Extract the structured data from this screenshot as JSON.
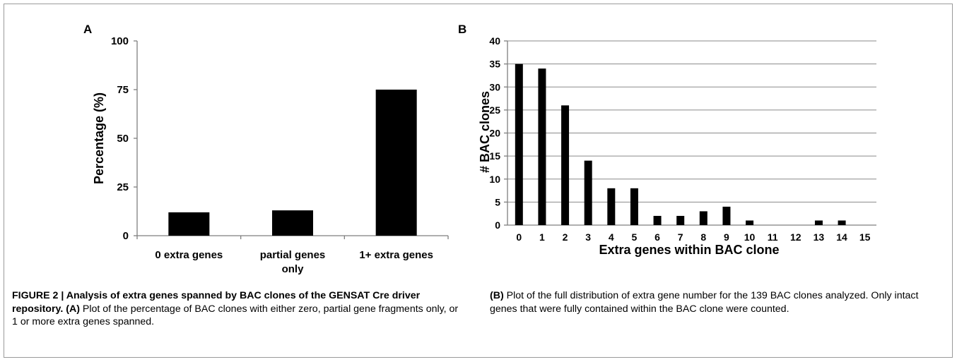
{
  "figure": {
    "caption_title": "FIGURE 2 | Analysis of extra genes spanned by BAC clones of the GENSAT Cre driver repository.",
    "caption_part_a_label": "(A)",
    "caption_part_a_text": "Plot of the percentage of BAC clones with either zero, partial gene fragments only, or 1 or more extra genes spanned.",
    "caption_part_b_label": "(B)",
    "caption_part_b_text": "Plot of the full distribution of extra gene number for the 139 BAC clones analyzed. Only intact genes that were fully contained within the BAC clone were counted."
  },
  "chart_data": [
    {
      "panel_label": "A",
      "type": "bar",
      "title": "",
      "ylabel": "Percentage (%)",
      "xlabel": "",
      "categories": [
        [
          "0 extra genes"
        ],
        [
          "partial genes",
          "only"
        ],
        [
          "1+ extra genes"
        ]
      ],
      "values": [
        12,
        13,
        75
      ],
      "ylim": [
        0,
        100
      ],
      "yticks": [
        0,
        25,
        50,
        75,
        100
      ],
      "grid": false,
      "bar_color": "#000000"
    },
    {
      "panel_label": "B",
      "type": "bar",
      "title": "",
      "ylabel": "# BAC clones",
      "xlabel": "Extra genes within BAC clone",
      "categories": [
        "0",
        "1",
        "2",
        "3",
        "4",
        "5",
        "6",
        "7",
        "8",
        "9",
        "10",
        "11",
        "12",
        "13",
        "14",
        "15"
      ],
      "values": [
        35,
        34,
        26,
        14,
        8,
        8,
        2,
        2,
        3,
        4,
        1,
        0,
        0,
        1,
        1,
        0
      ],
      "ylim": [
        0,
        40
      ],
      "yticks": [
        0,
        5,
        10,
        15,
        20,
        25,
        30,
        35,
        40
      ],
      "grid": true,
      "bar_color": "#000000"
    }
  ]
}
